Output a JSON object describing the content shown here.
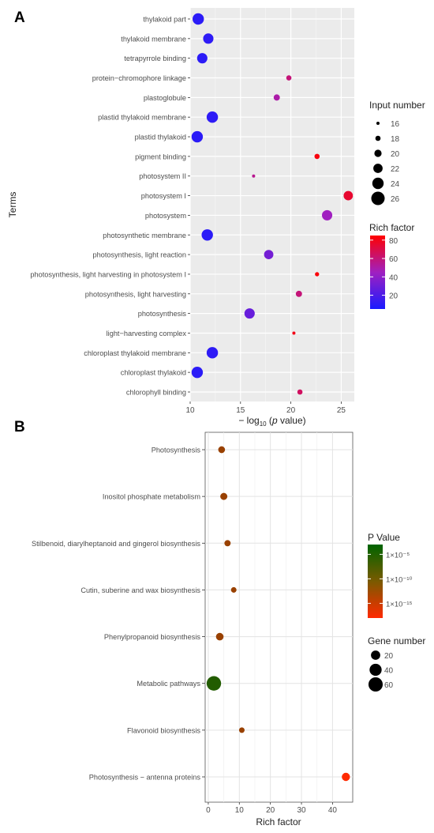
{
  "chart_data": [
    {
      "panel_label": "A",
      "type": "scatter",
      "ylabel": "Terms",
      "xlabel": "− log",
      "xlabel_sub": "10",
      "xlabel_tail": " (",
      "xlabel_italic": "p",
      "xlabel_end": " value)",
      "xlim": [
        10,
        26.3
      ],
      "xticks": [
        10,
        15,
        20,
        25
      ],
      "grid": true,
      "terms": [
        {
          "term": "thylakoid part",
          "x": 10.8,
          "size": 24,
          "rich": 10
        },
        {
          "term": "thylakoid membrane",
          "x": 11.8,
          "size": 23,
          "rich": 11
        },
        {
          "term": "tetrapyrrole binding",
          "x": 11.2,
          "size": 23,
          "rich": 10
        },
        {
          "term": "protein−chromophore linkage",
          "x": 19.8,
          "size": 18,
          "rich": 60
        },
        {
          "term": "plastoglobule",
          "x": 18.6,
          "size": 19,
          "rich": 50
        },
        {
          "term": "plastid thylakoid membrane",
          "x": 12.2,
          "size": 24,
          "rich": 11
        },
        {
          "term": "plastid thylakoid",
          "x": 10.7,
          "size": 24,
          "rich": 10
        },
        {
          "term": "pigment binding",
          "x": 22.6,
          "size": 18,
          "rich": 82
        },
        {
          "term": "photosystem II",
          "x": 16.3,
          "size": 16,
          "rich": 55
        },
        {
          "term": "photosystem I",
          "x": 25.7,
          "size": 22,
          "rich": 75
        },
        {
          "term": "photosystem",
          "x": 23.6,
          "size": 23,
          "rich": 45
        },
        {
          "term": "photosynthetic membrane",
          "x": 11.7,
          "size": 24,
          "rich": 10
        },
        {
          "term": "photosynthesis, light reaction",
          "x": 17.8,
          "size": 22,
          "rich": 32
        },
        {
          "term": "photosynthesis, light harvesting in photosystem I",
          "x": 22.6,
          "size": 17,
          "rich": 83
        },
        {
          "term": "photosynthesis, light harvesting",
          "x": 20.8,
          "size": 19,
          "rich": 60
        },
        {
          "term": "photosynthesis",
          "x": 15.9,
          "size": 23,
          "rich": 28
        },
        {
          "term": "light−harvesting complex",
          "x": 20.3,
          "size": 16,
          "rich": 80
        },
        {
          "term": "chloroplast thylakoid membrane",
          "x": 12.2,
          "size": 24,
          "rich": 11
        },
        {
          "term": "chloroplast thylakoid",
          "x": 10.7,
          "size": 24,
          "rich": 10
        },
        {
          "term": "chlorophyll binding",
          "x": 20.9,
          "size": 18,
          "rich": 65
        }
      ],
      "size_legend": {
        "title": "Input number",
        "values": [
          16,
          18,
          20,
          22,
          24,
          26
        ]
      },
      "color_legend": {
        "title": "Rich factor",
        "ticks": [
          80,
          60,
          40,
          20
        ],
        "range": [
          5,
          85
        ],
        "low_color": "#1a1aff",
        "mid_color": "#a020c0",
        "high_color": "#ff0000"
      }
    },
    {
      "panel_label": "B",
      "type": "scatter",
      "xlabel": "Rich factor",
      "ylabel": "",
      "xlim": [
        -1,
        46.5
      ],
      "xticks": [
        0,
        10,
        20,
        30,
        40
      ],
      "grid": true,
      "pathways": [
        {
          "name": "Photosynthesis",
          "x": 4.3,
          "genes": 8,
          "logp": -12
        },
        {
          "name": "Inositol phosphate metabolism",
          "x": 5.0,
          "genes": 9,
          "logp": -12
        },
        {
          "name": "Stilbenoid, diarylheptanoid and gingerol biosynthesis",
          "x": 6.2,
          "genes": 6,
          "logp": -12
        },
        {
          "name": "Cutin, suberine and wax biosynthesis",
          "x": 8.2,
          "genes": 4,
          "logp": -12
        },
        {
          "name": "Phenylpropanoid biosynthesis",
          "x": 3.7,
          "genes": 11,
          "logp": -12
        },
        {
          "name": "Metabolic pathways",
          "x": 1.8,
          "genes": 62,
          "logp": -5
        },
        {
          "name": "Flavonoid biosynthesis",
          "x": 10.8,
          "genes": 4,
          "logp": -12
        },
        {
          "name": "Photosynthesis − antenna proteins",
          "x": 44.3,
          "genes": 14,
          "logp": -18
        }
      ],
      "color_legend": {
        "title": "P Value",
        "labels": [
          "1×10⁻⁵",
          "1×10⁻¹⁰",
          "1×10⁻¹⁵"
        ],
        "label_logp": [
          -5,
          -10,
          -15
        ],
        "top_logp": -3,
        "bottom_logp": -18,
        "top_color": "#006400",
        "bottom_color": "#ff2a00"
      },
      "size_legend": {
        "title": "Gene number",
        "values": [
          20,
          40,
          60
        ]
      }
    }
  ]
}
